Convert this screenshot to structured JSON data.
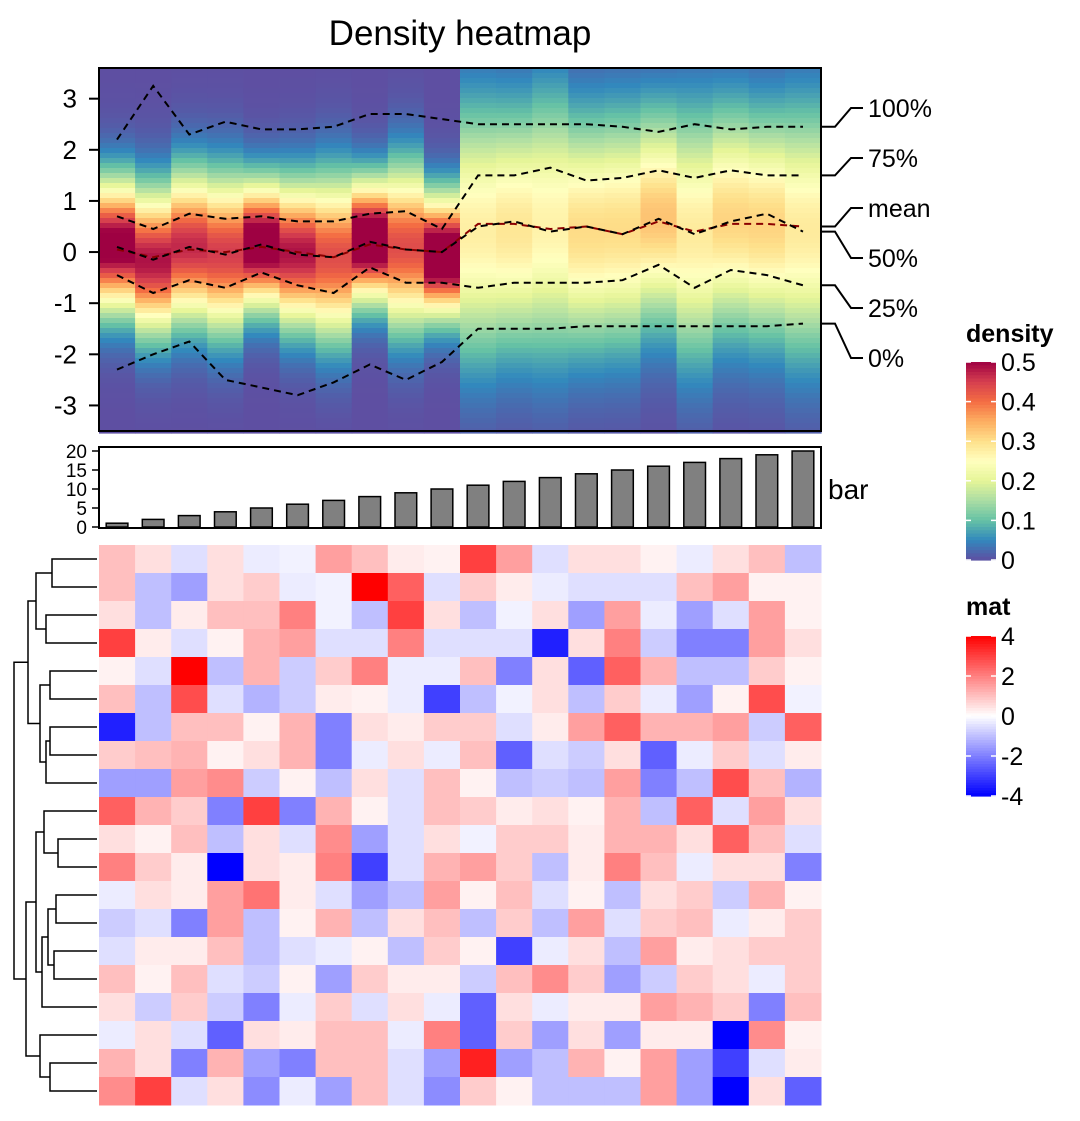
{
  "chart_data": [
    {
      "type": "heatmap",
      "name": "density",
      "title": "Density heatmap",
      "y_ticks": [
        3,
        2,
        1,
        0,
        -1,
        -2,
        -3
      ],
      "ylim": [
        -3.5,
        3.6
      ],
      "n_columns": 20,
      "quantiles": {
        "q100": [
          2.2,
          3.25,
          2.3,
          2.55,
          2.4,
          2.4,
          2.45,
          2.7,
          2.7,
          2.6,
          2.5,
          2.5,
          2.5,
          2.5,
          2.45,
          2.35,
          2.5,
          2.4,
          2.45,
          2.45
        ],
        "q75": [
          0.7,
          0.45,
          0.75,
          0.65,
          0.7,
          0.6,
          0.6,
          0.75,
          0.8,
          0.45,
          1.5,
          1.5,
          1.65,
          1.4,
          1.45,
          1.6,
          1.45,
          1.6,
          1.5,
          1.5
        ],
        "mean": [
          0.05,
          -0.1,
          0.05,
          0.0,
          0.1,
          0.0,
          -0.1,
          0.15,
          0.05,
          0.0,
          0.55,
          0.55,
          0.45,
          0.5,
          0.35,
          0.6,
          0.4,
          0.55,
          0.55,
          0.5
        ],
        "q50": [
          0.1,
          -0.15,
          0.1,
          -0.05,
          0.15,
          -0.05,
          -0.1,
          0.2,
          0.05,
          0.0,
          0.5,
          0.6,
          0.4,
          0.5,
          0.35,
          0.65,
          0.35,
          0.6,
          0.75,
          0.4
        ],
        "q25": [
          -0.45,
          -0.8,
          -0.55,
          -0.7,
          -0.4,
          -0.65,
          -0.8,
          -0.3,
          -0.6,
          -0.6,
          -0.7,
          -0.6,
          -0.6,
          -0.6,
          -0.55,
          -0.25,
          -0.7,
          -0.35,
          -0.45,
          -0.65
        ],
        "q0": [
          -2.3,
          -2.0,
          -1.75,
          -2.5,
          -2.65,
          -2.8,
          -2.55,
          -2.2,
          -2.5,
          -2.15,
          -1.5,
          -1.5,
          -1.5,
          -1.45,
          -1.45,
          -1.45,
          -1.45,
          -1.45,
          -1.45,
          -1.4
        ]
      },
      "quantile_labels": [
        "100%",
        "75%",
        "mean",
        "50%",
        "25%",
        "0%"
      ],
      "legend": {
        "title": "density",
        "ticks": [
          "0.5",
          "0.4",
          "0.3",
          "0.2",
          "0.1",
          "0"
        ],
        "range": [
          0,
          0.5
        ]
      }
    },
    {
      "type": "bar",
      "name": "bar",
      "label": "bar",
      "values": [
        1,
        2,
        3,
        4,
        5,
        6,
        7,
        8,
        9,
        10,
        11,
        12,
        13,
        14,
        15,
        16,
        17,
        18,
        19,
        20
      ],
      "y_ticks": [
        20,
        15,
        10,
        5,
        0
      ],
      "ylim": [
        0,
        20
      ],
      "bar_color": "#808080"
    },
    {
      "type": "heatmap",
      "name": "mat",
      "n_rows": 20,
      "n_columns": 20,
      "values": [
        [
          1.0,
          0.5,
          -0.5,
          0.5,
          -0.3,
          -0.2,
          1.5,
          1.0,
          0.3,
          0.2,
          3.0,
          1.5,
          -0.5,
          0.5,
          0.5,
          0.2,
          -0.3,
          0.5,
          1.0,
          -1.0
        ],
        [
          1.0,
          -1.0,
          -1.5,
          0.5,
          0.8,
          -0.3,
          -0.2,
          4.0,
          2.5,
          -0.5,
          0.8,
          0.3,
          -0.3,
          -0.5,
          -0.5,
          -0.5,
          1.0,
          1.5,
          0.2,
          0.2
        ],
        [
          0.5,
          -1.0,
          0.3,
          1.0,
          1.0,
          2.0,
          -0.2,
          -1.0,
          3.0,
          0.5,
          -1.0,
          -0.2,
          0.5,
          -1.5,
          1.5,
          -0.3,
          -1.5,
          -0.5,
          1.5,
          0.2
        ],
        [
          3.0,
          0.3,
          -0.5,
          0.2,
          1.2,
          1.5,
          -0.5,
          -0.5,
          2.0,
          -0.5,
          -0.5,
          -0.5,
          -3.5,
          0.5,
          2.0,
          -0.8,
          -2.0,
          -2.0,
          1.5,
          0.5
        ],
        [
          0.2,
          -0.5,
          4.0,
          -1.0,
          1.2,
          -0.8,
          0.8,
          2.0,
          -0.3,
          -0.3,
          1.0,
          -2.0,
          0.5,
          -2.5,
          2.5,
          1.2,
          -1.0,
          -1.0,
          0.8,
          0.2
        ],
        [
          1.0,
          -1.0,
          2.8,
          -0.5,
          -1.2,
          -0.8,
          0.3,
          0.2,
          -0.3,
          -3.0,
          -1.0,
          -0.2,
          0.5,
          -1.0,
          0.8,
          -0.3,
          -1.5,
          0.2,
          2.8,
          -0.2
        ],
        [
          -3.5,
          -1.0,
          1.0,
          1.0,
          0.2,
          1.2,
          -2.0,
          0.5,
          0.3,
          0.8,
          0.8,
          -0.5,
          0.3,
          1.5,
          2.5,
          1.2,
          1.2,
          1.5,
          -0.8,
          2.5
        ],
        [
          0.8,
          1.0,
          1.2,
          0.2,
          0.5,
          1.2,
          -2.0,
          -0.3,
          0.5,
          -0.3,
          1.0,
          -2.5,
          -0.5,
          -0.8,
          0.5,
          -2.5,
          -0.3,
          0.8,
          -0.5,
          0.3
        ],
        [
          -1.5,
          -1.5,
          1.5,
          1.8,
          -0.8,
          0.2,
          -1.0,
          0.5,
          -0.5,
          1.0,
          0.2,
          -1.0,
          -0.8,
          -1.0,
          1.5,
          -2.0,
          -1.0,
          2.8,
          1.0,
          -1.2
        ],
        [
          2.5,
          1.2,
          0.8,
          -2.0,
          3.0,
          -2.0,
          1.2,
          0.2,
          -0.5,
          1.0,
          0.8,
          0.3,
          0.5,
          0.2,
          1.2,
          -1.0,
          2.5,
          -0.5,
          1.5,
          0.5
        ],
        [
          0.5,
          0.2,
          1.0,
          -1.0,
          0.5,
          -0.5,
          1.8,
          -1.5,
          -0.5,
          0.5,
          -0.2,
          0.8,
          0.8,
          0.3,
          1.2,
          1.2,
          0.5,
          2.5,
          1.0,
          -0.5
        ],
        [
          2.0,
          0.8,
          0.3,
          -4.0,
          0.5,
          0.3,
          2.0,
          -3.0,
          -0.5,
          1.2,
          1.5,
          0.8,
          -1.0,
          0.3,
          2.0,
          1.0,
          -0.3,
          0.5,
          0.5,
          -2.0
        ],
        [
          -0.3,
          0.5,
          0.3,
          1.5,
          2.2,
          0.3,
          -0.5,
          -1.5,
          -1.0,
          1.5,
          0.2,
          1.0,
          -0.5,
          0.2,
          -1.0,
          0.5,
          0.8,
          -0.8,
          1.2,
          0.2
        ],
        [
          -0.8,
          -0.5,
          -2.0,
          1.5,
          -1.0,
          0.2,
          1.2,
          -1.0,
          0.5,
          1.0,
          -1.0,
          0.8,
          -1.0,
          1.5,
          -0.5,
          0.8,
          1.0,
          -0.3,
          0.3,
          0.8
        ],
        [
          -0.5,
          0.3,
          0.3,
          1.0,
          -1.0,
          -0.5,
          -0.3,
          0.2,
          -1.0,
          0.8,
          0.2,
          -3.0,
          -0.3,
          0.5,
          -1.0,
          1.5,
          0.3,
          0.5,
          0.8,
          0.8
        ],
        [
          1.0,
          0.2,
          1.0,
          -0.5,
          -0.8,
          0.2,
          -1.5,
          0.8,
          0.3,
          0.3,
          -0.8,
          1.0,
          1.8,
          0.8,
          -1.5,
          -0.8,
          0.8,
          0.5,
          -0.3,
          0.8
        ],
        [
          0.5,
          -0.8,
          0.8,
          -0.8,
          -2.0,
          -0.3,
          0.8,
          -0.5,
          0.5,
          -0.3,
          -2.5,
          0.5,
          -0.3,
          0.3,
          0.3,
          1.5,
          1.2,
          0.8,
          -2.0,
          1.0
        ],
        [
          -0.3,
          0.5,
          -0.5,
          -2.5,
          0.5,
          0.3,
          1.0,
          1.0,
          -0.3,
          2.0,
          -2.5,
          0.8,
          -1.5,
          0.5,
          -1.5,
          0.3,
          0.3,
          -4.0,
          1.8,
          0.2
        ],
        [
          1.2,
          0.5,
          -2.0,
          1.2,
          -1.5,
          -2.0,
          1.0,
          1.0,
          -0.5,
          -1.5,
          3.5,
          -1.5,
          -1.0,
          1.2,
          0.2,
          1.5,
          -1.5,
          -3.0,
          -0.5,
          0.3
        ],
        [
          1.8,
          3.0,
          -0.5,
          0.5,
          -1.8,
          -0.3,
          -1.5,
          1.0,
          -0.5,
          -1.8,
          0.8,
          0.2,
          -1.0,
          -1.0,
          -1.0,
          1.5,
          -1.5,
          -4.0,
          0.5,
          -2.5
        ]
      ],
      "dendrogram": "rows clustered",
      "legend": {
        "title": "mat",
        "ticks": [
          "4",
          "2",
          "0",
          "-2",
          "-4"
        ],
        "range": [
          -4,
          4
        ]
      }
    }
  ]
}
